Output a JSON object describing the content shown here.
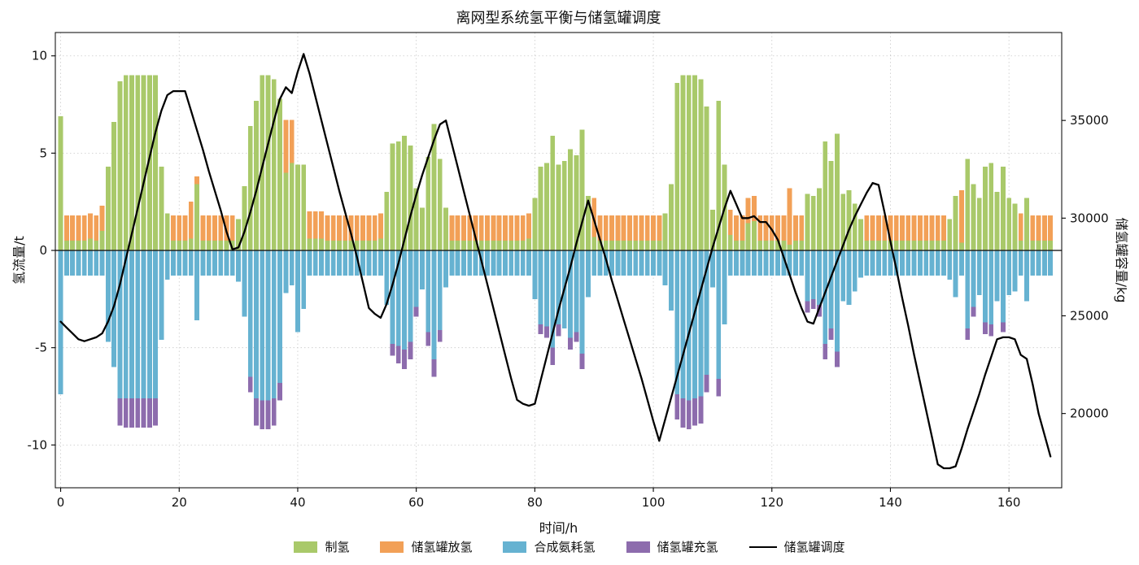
{
  "title": "离网型系统氢平衡与储氢罐调度",
  "chart_data": {
    "type": "bar",
    "title": "离网型系统氢平衡与储氢罐调度",
    "xlabel": "时间/h",
    "ylabel_left": "氢流量/t",
    "ylabel_right": "储氢罐容量/kg",
    "hours": 168,
    "x_ticks": [
      0,
      20,
      40,
      60,
      80,
      100,
      120,
      140,
      160
    ],
    "y_left_ticks": [
      -10,
      -5,
      0,
      5,
      10
    ],
    "y_right_ticks": [
      20000,
      25000,
      30000,
      35000
    ],
    "x_range": [
      -0.9,
      168.9
    ],
    "y_left_range": [
      -12.2,
      11.2
    ],
    "y_right_range": [
      16200,
      39500
    ],
    "grid": true,
    "legend_position": "bottom",
    "series": [
      {
        "name": "制氢",
        "type": "bar",
        "stack": "pos",
        "color": "#a9c96a",
        "values": [
          6.9,
          0.5,
          0.5,
          0.5,
          0.5,
          0.6,
          0.5,
          1.0,
          4.3,
          6.6,
          8.7,
          9.0,
          9.0,
          9.0,
          9.0,
          9.0,
          9.0,
          4.3,
          1.9,
          0.5,
          0.5,
          0.5,
          0.6,
          3.4,
          0.5,
          0.5,
          0.5,
          0.5,
          0.5,
          0.5,
          1.6,
          3.3,
          6.4,
          7.7,
          9.0,
          9.0,
          8.8,
          7.8,
          4.0,
          4.5,
          4.4,
          4.4,
          0.6,
          0.6,
          0.6,
          0.5,
          0.5,
          0.5,
          0.5,
          0.5,
          0.5,
          0.5,
          0.5,
          0.5,
          0.6,
          3.0,
          5.5,
          5.6,
          5.9,
          5.4,
          3.2,
          2.2,
          4.8,
          6.5,
          4.7,
          2.2,
          0.5,
          0.5,
          0.5,
          0.5,
          0.5,
          0.5,
          0.5,
          0.5,
          0.5,
          0.5,
          0.5,
          0.5,
          0.5,
          0.6,
          2.7,
          4.3,
          4.5,
          5.9,
          4.4,
          4.6,
          5.2,
          4.9,
          6.2,
          2.8,
          0.7,
          0.5,
          0.5,
          0.5,
          0.5,
          0.5,
          0.5,
          0.5,
          0.5,
          0.5,
          0.5,
          0.5,
          1.9,
          3.4,
          8.6,
          9.0,
          9.0,
          9.0,
          8.8,
          7.4,
          2.1,
          7.7,
          4.4,
          0.8,
          0.5,
          0.5,
          1.4,
          1.5,
          0.5,
          0.5,
          0.5,
          0.5,
          0.5,
          0.3,
          0.5,
          0.5,
          2.9,
          2.8,
          3.2,
          5.6,
          4.6,
          6.0,
          2.9,
          3.1,
          2.4,
          1.6,
          0.5,
          0.5,
          0.5,
          0.5,
          0.5,
          0.5,
          0.5,
          0.5,
          0.5,
          0.5,
          0.5,
          0.5,
          0.5,
          0.5,
          1.6,
          2.8,
          0.4,
          4.7,
          3.4,
          2.7,
          4.3,
          4.5,
          3.0,
          4.3,
          2.7,
          2.4,
          0.5,
          2.7,
          0.5,
          0.5,
          0.5,
          0.5
        ]
      },
      {
        "name": "储氢罐放氢",
        "type": "bar",
        "stack": "pos",
        "color": "#f2a057",
        "values": [
          0,
          1.3,
          1.3,
          1.3,
          1.3,
          1.3,
          1.3,
          1.3,
          0,
          0,
          0,
          0,
          0,
          0,
          0,
          0,
          0,
          0,
          0,
          1.3,
          1.3,
          1.3,
          1.9,
          0.4,
          1.3,
          1.3,
          1.3,
          1.3,
          1.3,
          1.3,
          0,
          0,
          0,
          0,
          0,
          0,
          0,
          0,
          2.7,
          2.2,
          0,
          0,
          1.4,
          1.4,
          1.4,
          1.3,
          1.3,
          1.3,
          1.3,
          1.3,
          1.3,
          1.3,
          1.3,
          1.3,
          1.3,
          0,
          0,
          0,
          0,
          0,
          0,
          0,
          0,
          0,
          0,
          0,
          1.3,
          1.3,
          1.3,
          1.3,
          1.3,
          1.3,
          1.3,
          1.3,
          1.3,
          1.3,
          1.3,
          1.3,
          1.3,
          1.3,
          0,
          0,
          0,
          0,
          0,
          0,
          0,
          0,
          0,
          0,
          2.0,
          1.3,
          1.3,
          1.3,
          1.3,
          1.3,
          1.3,
          1.3,
          1.3,
          1.3,
          1.3,
          1.3,
          0,
          0,
          0,
          0,
          0,
          0,
          0,
          0,
          0,
          0,
          0,
          1.3,
          1.3,
          1.3,
          1.3,
          1.3,
          1.3,
          1.3,
          1.3,
          1.3,
          1.3,
          2.9,
          1.3,
          1.3,
          0,
          0,
          0,
          0,
          0,
          0,
          0,
          0,
          0,
          0,
          1.3,
          1.3,
          1.3,
          1.3,
          1.3,
          1.3,
          1.3,
          1.3,
          1.3,
          1.3,
          1.3,
          1.3,
          1.3,
          1.3,
          0,
          0,
          2.7,
          0,
          0,
          0,
          0,
          0,
          0,
          0,
          0,
          0,
          1.4,
          0,
          1.3,
          1.3,
          1.3,
          1.3
        ]
      },
      {
        "name": "合成氨耗氢",
        "type": "bar",
        "stack": "neg",
        "color": "#66b2d1",
        "values": [
          -7.4,
          -1.3,
          -1.3,
          -1.3,
          -1.3,
          -1.3,
          -1.3,
          -1.3,
          -4.7,
          -6.0,
          -7.6,
          -7.6,
          -7.6,
          -7.6,
          -7.6,
          -7.6,
          -7.6,
          -4.6,
          -1.5,
          -1.3,
          -1.3,
          -1.3,
          -1.3,
          -3.6,
          -1.3,
          -1.3,
          -1.3,
          -1.3,
          -1.3,
          -1.3,
          -1.6,
          -3.4,
          -6.5,
          -7.6,
          -7.7,
          -7.7,
          -7.6,
          -6.8,
          -2.2,
          -1.8,
          -4.2,
          -3.0,
          -1.3,
          -1.3,
          -1.3,
          -1.3,
          -1.3,
          -1.3,
          -1.3,
          -1.3,
          -1.3,
          -1.3,
          -1.3,
          -1.3,
          -1.3,
          -2.8,
          -4.8,
          -4.9,
          -5.1,
          -4.7,
          -2.9,
          -2.0,
          -4.2,
          -5.6,
          -4.1,
          -1.9,
          -1.3,
          -1.3,
          -1.3,
          -1.3,
          -1.3,
          -1.3,
          -1.3,
          -1.3,
          -1.3,
          -1.3,
          -1.3,
          -1.3,
          -1.3,
          -1.3,
          -2.5,
          -3.8,
          -3.9,
          -5.0,
          -3.8,
          -4.0,
          -4.5,
          -4.2,
          -5.3,
          -2.4,
          -1.3,
          -1.3,
          -1.3,
          -1.3,
          -1.3,
          -1.3,
          -1.3,
          -1.3,
          -1.3,
          -1.3,
          -1.3,
          -1.3,
          -1.8,
          -3.1,
          -7.4,
          -7.6,
          -7.7,
          -7.6,
          -7.5,
          -6.4,
          -1.9,
          -6.6,
          -3.8,
          -1.3,
          -1.3,
          -1.3,
          -1.3,
          -1.3,
          -1.3,
          -1.3,
          -1.3,
          -1.3,
          -1.3,
          -1.3,
          -1.3,
          -1.3,
          -2.6,
          -2.5,
          -2.8,
          -4.8,
          -4.0,
          -5.2,
          -2.6,
          -2.8,
          -2.1,
          -1.4,
          -1.3,
          -1.3,
          -1.3,
          -1.3,
          -1.3,
          -1.3,
          -1.3,
          -1.3,
          -1.3,
          -1.3,
          -1.3,
          -1.3,
          -1.3,
          -1.3,
          -1.5,
          -2.4,
          -1.3,
          -4.0,
          -2.9,
          -2.3,
          -3.7,
          -3.8,
          -2.6,
          -3.7,
          -2.3,
          -2.1,
          -1.3,
          -2.6,
          -1.3,
          -1.3,
          -1.3,
          -1.3
        ]
      },
      {
        "name": "储氢罐充氢",
        "type": "bar",
        "stack": "neg",
        "color": "#8d6cad",
        "values": [
          0,
          0,
          0,
          0,
          0,
          0,
          0,
          0,
          0,
          0,
          -1.4,
          -1.5,
          -1.5,
          -1.5,
          -1.5,
          -1.5,
          -1.4,
          0,
          0,
          0,
          0,
          0,
          0,
          0,
          0,
          0,
          0,
          0,
          0,
          0,
          0,
          0,
          -0.8,
          -1.4,
          -1.5,
          -1.5,
          -1.4,
          -0.9,
          0,
          0,
          0,
          0,
          0,
          0,
          0,
          0,
          0,
          0,
          0,
          0,
          0,
          0,
          0,
          0,
          0,
          0,
          -0.6,
          -0.9,
          -1.0,
          -0.9,
          -0.5,
          0,
          -0.7,
          -0.9,
          -0.6,
          0,
          0,
          0,
          0,
          0,
          0,
          0,
          0,
          0,
          0,
          0,
          0,
          0,
          0,
          0,
          0,
          -0.5,
          -0.6,
          -0.9,
          -0.6,
          0,
          -0.6,
          -0.5,
          -0.8,
          0,
          0,
          0,
          0,
          0,
          0,
          0,
          0,
          0,
          0,
          0,
          0,
          0,
          0,
          0,
          -1.3,
          -1.5,
          -1.5,
          -1.4,
          -1.4,
          -0.9,
          0,
          -0.9,
          0,
          0,
          0,
          0,
          0,
          0,
          0,
          0,
          0,
          0,
          0,
          0,
          0,
          0,
          -0.6,
          -0.5,
          -0.6,
          -0.8,
          -0.6,
          -0.8,
          0,
          0,
          0,
          0,
          0,
          0,
          0,
          0,
          0,
          0,
          0,
          0,
          0,
          0,
          0,
          0,
          0,
          0,
          0,
          0,
          0,
          -0.6,
          -0.5,
          0,
          -0.6,
          -0.6,
          0,
          -0.5,
          0,
          0,
          0,
          0,
          0,
          0,
          0,
          0
        ]
      },
      {
        "name": "储氢罐调度",
        "type": "line",
        "axis": "right",
        "color": "#000000",
        "values": [
          24700,
          24400,
          24100,
          23800,
          23700,
          23800,
          23900,
          24100,
          24700,
          25500,
          26600,
          27900,
          29200,
          30500,
          31800,
          33100,
          34400,
          35500,
          36300,
          36500,
          36500,
          36500,
          35500,
          34500,
          33500,
          32400,
          31400,
          30400,
          29300,
          28400,
          28500,
          29300,
          30300,
          31400,
          32600,
          33800,
          35000,
          36100,
          36700,
          36400,
          37500,
          38400,
          37400,
          36200,
          35000,
          33800,
          32600,
          31400,
          30300,
          29200,
          28000,
          26700,
          25400,
          25100,
          24900,
          25600,
          26600,
          27700,
          28900,
          30100,
          31200,
          32200,
          33100,
          34000,
          34800,
          35000,
          33800,
          32600,
          31400,
          30200,
          29000,
          27800,
          26600,
          25400,
          24200,
          23000,
          21800,
          20700,
          20500,
          20400,
          20500,
          21700,
          22900,
          24100,
          25300,
          26400,
          27500,
          28700,
          29800,
          30900,
          29900,
          28900,
          27900,
          26800,
          25800,
          24800,
          23800,
          22800,
          21800,
          20700,
          19600,
          18600,
          19700,
          20800,
          21900,
          23000,
          24100,
          25200,
          26300,
          27400,
          28500,
          29500,
          30500,
          31400,
          30700,
          30000,
          30000,
          30100,
          29800,
          29800,
          29400,
          28900,
          28000,
          27100,
          26200,
          25400,
          24700,
          24600,
          25400,
          26200,
          27000,
          27800,
          28600,
          29400,
          30100,
          30700,
          31300,
          31800,
          31700,
          30300,
          28800,
          27400,
          25900,
          24500,
          23000,
          21600,
          20200,
          18800,
          17400,
          17200,
          17200,
          17300,
          18200,
          19200,
          20100,
          21000,
          22000,
          22900,
          23800,
          23900,
          23900,
          23800,
          23000,
          22800,
          21500,
          20000,
          18900,
          17800
        ]
      }
    ]
  }
}
